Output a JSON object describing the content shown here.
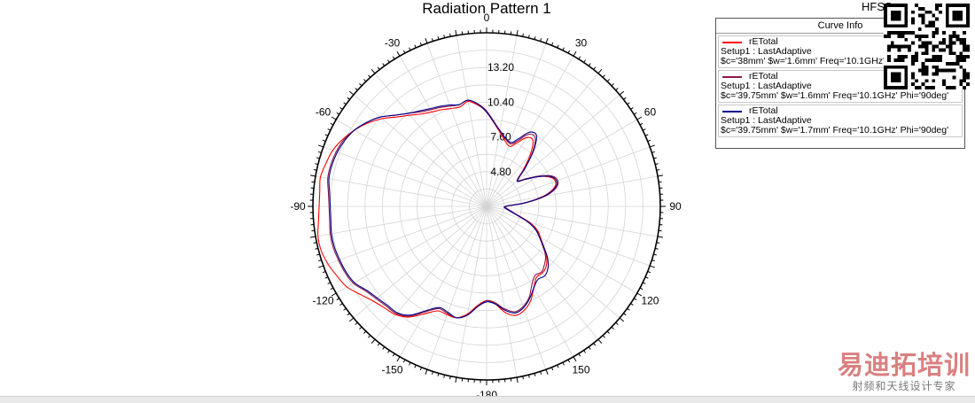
{
  "chart_data": {
    "type": "polar-line",
    "title": "Radiation Pattern 1",
    "angle_ticks": [
      0,
      30,
      60,
      90,
      120,
      150,
      -180,
      -150,
      -120,
      -90,
      -60,
      -30
    ],
    "radial_ticks": [
      "4.80",
      "7.60",
      "10.40",
      "13.20"
    ],
    "radial_range": [
      2.0,
      16.0
    ],
    "grid": true,
    "legend": {
      "title": "Curve Info",
      "placement": "top-right"
    },
    "series": [
      {
        "name": "rETotal",
        "setup": "Setup1 : LastAdaptive",
        "params": "$c='38mm' $w='1.6mm' Freq='10.1GHz' Phi='90deg'",
        "color": "#ff0000",
        "theta": [
          0,
          10,
          20,
          25,
          30,
          35,
          40,
          45,
          50,
          55,
          60,
          65,
          70,
          75,
          80,
          85,
          90,
          100,
          110,
          115,
          120,
          125,
          130,
          135,
          140,
          145,
          150,
          155,
          160,
          165,
          170,
          175,
          180,
          185,
          190,
          195,
          200,
          205,
          210,
          215,
          220,
          225,
          230,
          235,
          240,
          245,
          250,
          255,
          260,
          265,
          270,
          275,
          280,
          285,
          290,
          295,
          300,
          305,
          310,
          315,
          320,
          325,
          330,
          335,
          340,
          345,
          350,
          355
        ],
        "r": [
          9.6,
          8.1,
          7.2,
          7.6,
          8.4,
          8.5,
          7.5,
          6.2,
          5.2,
          5.8,
          6.8,
          7.6,
          7.9,
          7.6,
          6.6,
          5.0,
          3.6,
          3.9,
          5.6,
          6.5,
          7.0,
          7.6,
          8.3,
          8.8,
          9.0,
          9.0,
          9.6,
          10.4,
          10.9,
          11.1,
          10.7,
          9.9,
          9.6,
          10.0,
          10.8,
          11.3,
          11.3,
          11.3,
          12.0,
          12.9,
          13.4,
          13.6,
          13.9,
          14.4,
          15.0,
          15.3,
          15.6,
          15.8,
          15.8,
          15.6,
          15.5,
          15.5,
          15.6,
          15.4,
          15.2,
          14.8,
          14.3,
          13.7,
          13.0,
          12.2,
          11.6,
          11.1,
          10.8,
          10.6,
          10.4,
          10.3,
          10.6,
          10.2
        ]
      },
      {
        "name": "rETotal",
        "setup": "Setup1 : LastAdaptive",
        "params": "$c='39.75mm' $w='1.6mm' Freq='10.1GHz' Phi='90deg'",
        "color": "#8b1a4a",
        "theta": [
          0,
          10,
          20,
          25,
          30,
          35,
          40,
          45,
          50,
          55,
          60,
          65,
          70,
          75,
          80,
          85,
          90,
          100,
          110,
          115,
          120,
          125,
          130,
          135,
          140,
          145,
          150,
          155,
          160,
          165,
          170,
          175,
          180,
          185,
          190,
          195,
          200,
          205,
          210,
          215,
          220,
          225,
          230,
          235,
          240,
          245,
          250,
          255,
          260,
          265,
          270,
          275,
          280,
          285,
          290,
          295,
          300,
          305,
          310,
          315,
          320,
          325,
          330,
          335,
          340,
          345,
          350,
          355
        ],
        "r": [
          9.7,
          8.2,
          7.4,
          7.8,
          8.7,
          8.8,
          7.8,
          6.4,
          5.3,
          5.9,
          6.9,
          7.8,
          8.1,
          7.8,
          6.8,
          5.1,
          3.6,
          3.9,
          5.5,
          6.4,
          6.9,
          7.5,
          8.2,
          8.6,
          8.9,
          8.8,
          9.3,
          10.1,
          10.6,
          10.8,
          10.4,
          9.8,
          9.6,
          10.1,
          10.9,
          11.3,
          11.2,
          11.1,
          11.8,
          12.8,
          13.3,
          13.4,
          13.6,
          13.9,
          14.4,
          14.6,
          14.7,
          14.8,
          14.8,
          14.7,
          14.7,
          14.8,
          15.0,
          15.0,
          14.9,
          14.7,
          14.3,
          13.8,
          13.2,
          12.4,
          11.8,
          11.3,
          11.0,
          10.8,
          10.6,
          10.5,
          10.7,
          10.3
        ]
      },
      {
        "name": "rETotal",
        "setup": "Setup1 : LastAdaptive",
        "params": "$c='39.75mm' $w='1.7mm' Freq='10.1GHz' Phi='90deg'",
        "color": "#00008b",
        "theta": [
          0,
          10,
          20,
          25,
          30,
          35,
          40,
          45,
          50,
          55,
          60,
          65,
          70,
          75,
          80,
          85,
          90,
          100,
          110,
          115,
          120,
          125,
          130,
          135,
          140,
          145,
          150,
          155,
          160,
          165,
          170,
          175,
          180,
          185,
          190,
          195,
          200,
          205,
          210,
          215,
          220,
          225,
          230,
          235,
          240,
          245,
          250,
          255,
          260,
          265,
          270,
          275,
          280,
          285,
          290,
          295,
          300,
          305,
          310,
          315,
          320,
          325,
          330,
          335,
          340,
          345,
          350,
          355
        ],
        "r": [
          9.6,
          8.2,
          7.5,
          8.0,
          8.9,
          9.0,
          7.9,
          6.4,
          5.2,
          5.8,
          6.8,
          7.7,
          8.0,
          7.7,
          6.7,
          5.0,
          3.5,
          3.8,
          5.4,
          6.3,
          6.9,
          7.6,
          8.4,
          9.0,
          9.3,
          9.2,
          9.6,
          10.2,
          10.7,
          10.9,
          10.5,
          9.9,
          9.7,
          10.1,
          10.9,
          11.3,
          11.1,
          11.0,
          11.7,
          12.7,
          13.2,
          13.3,
          13.5,
          13.8,
          14.3,
          14.5,
          14.6,
          14.7,
          14.7,
          14.6,
          14.6,
          14.7,
          14.9,
          14.9,
          14.8,
          14.6,
          14.3,
          13.8,
          13.2,
          12.4,
          11.8,
          11.4,
          11.1,
          10.9,
          10.7,
          10.5,
          10.7,
          10.3
        ]
      }
    ]
  },
  "hfss_tag": "HFSS",
  "watermark": {
    "main": "易迪拓培训",
    "sub": "射频和天线设计专家"
  },
  "qr_icon": "qr-code-icon"
}
